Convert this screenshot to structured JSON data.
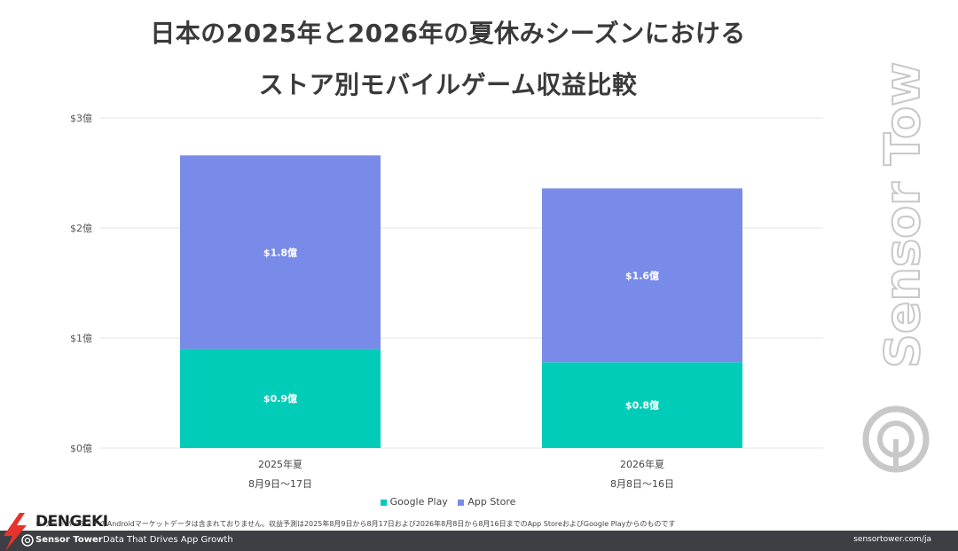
{
  "title": {
    "line1": "日本の2025年と2026年の夏休みシーズンにおける",
    "line2": "ストア別モバイルゲーム収益比較"
  },
  "colors": {
    "google_play": "#00CCB8",
    "app_store": "#798BE8",
    "grid": "#e6e6e6",
    "footer_bg": "#3d3f44",
    "dengeki_red": "#e8322c"
  },
  "chart_data": {
    "type": "bar",
    "stacked": true,
    "categories": [
      "2025年夏",
      "2026年夏"
    ],
    "category_sublabels": [
      "8月9日～17日",
      "8月8日～16日"
    ],
    "series": [
      {
        "name": "Google Play",
        "values": [
          0.9,
          0.78
        ],
        "labels": [
          "$0.9億",
          "$0.8億"
        ]
      },
      {
        "name": "App Store",
        "values": [
          1.76,
          1.58
        ],
        "labels": [
          "$1.8億",
          "$1.6億"
        ]
      }
    ],
    "yticks": [
      "$0億",
      "$1億",
      "$2億",
      "$3億"
    ],
    "ylim": [
      0,
      3
    ],
    "grid": true,
    "legend": "bottom-center"
  },
  "footnote": "※ サードパーティーのAndroidマーケットデータは含まれておりません。収益予測は2025年8月9日から8月17日および2026年8月8日から8月16日までのApp StoreおよびGoogle Playからのものです",
  "footer": {
    "brand": "Sensor Tower",
    "tagline": "Data That Drives App Growth",
    "url": "sensortower.com/ja"
  },
  "watermark": {
    "text": "Sensor Tower",
    "icon": "sensor-tower-logo-icon"
  },
  "overlay": {
    "text": "DENGEKI",
    "icon": "dengeki-lightning-icon"
  }
}
